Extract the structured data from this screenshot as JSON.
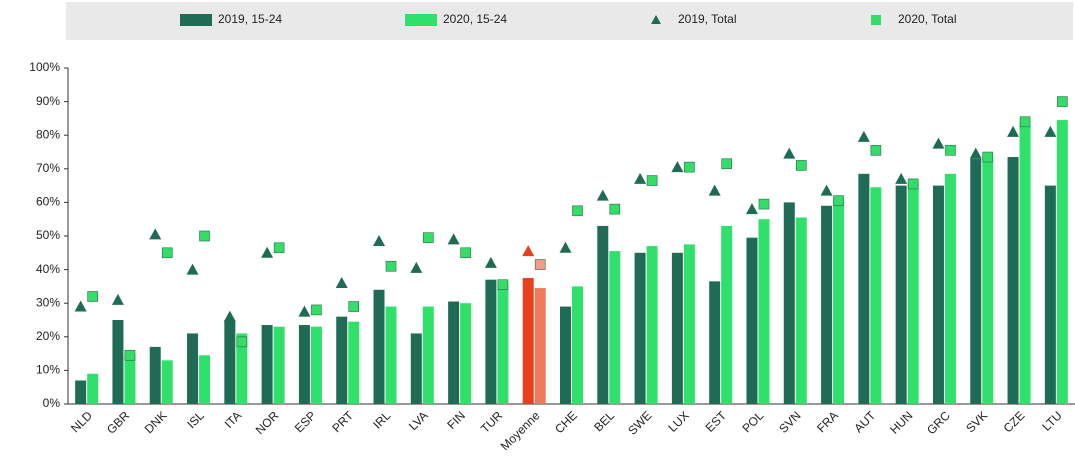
{
  "chart_data": {
    "type": "bar",
    "categories": [
      "NLD",
      "GBR",
      "DNK",
      "ISL",
      "ITA",
      "NOR",
      "ESP",
      "PRT",
      "IRL",
      "LVA",
      "FIN",
      "TUR",
      "Moyenne",
      "CHE",
      "BEL",
      "SWE",
      "LUX",
      "EST",
      "POL",
      "SVN",
      "FRA",
      "AUT",
      "HUN",
      "GRC",
      "SVK",
      "CZE",
      "LTU"
    ],
    "highlight_index": 12,
    "series": [
      {
        "name": "2019, 15-24",
        "mark": "bar",
        "color": "#1f6b55",
        "highlight_color": "#e8401c",
        "values": [
          7,
          25,
          17,
          21,
          25,
          23.5,
          23.5,
          26,
          34,
          21,
          30.5,
          37,
          37.5,
          29,
          53,
          45,
          45,
          36.5,
          49.5,
          60,
          59,
          68.5,
          65,
          65,
          73,
          73.5,
          65
        ]
      },
      {
        "name": "2020, 15-24",
        "mark": "bar",
        "color": "#2fe06a",
        "highlight_color": "#f07a5a",
        "values": [
          9,
          15,
          13,
          14.5,
          21,
          23,
          23,
          24.5,
          29,
          29,
          30,
          36,
          34.5,
          35,
          45.5,
          47,
          47.5,
          53,
          55,
          55.5,
          61,
          64.5,
          66,
          68.5,
          74,
          84,
          84.5
        ]
      },
      {
        "name": "2019, Total",
        "mark": "triangle",
        "color": "#1f6b55",
        "highlight_color": "#e8401c",
        "values": [
          29,
          31,
          50.5,
          40,
          26,
          45,
          27.5,
          36,
          48.5,
          40.5,
          49,
          42,
          45.5,
          46.5,
          62,
          67,
          70.5,
          63.5,
          58,
          74.5,
          63.5,
          79.5,
          67,
          77.5,
          74.5,
          81,
          81
        ]
      },
      {
        "name": "2020, Total",
        "mark": "square",
        "color": "#33dd66",
        "highlight_color": "#f59a85",
        "values": [
          32,
          14.5,
          45,
          50,
          18.5,
          46.5,
          28,
          29,
          41,
          49.5,
          45,
          35.5,
          41.5,
          57.5,
          58,
          66.5,
          70.5,
          71.5,
          59.5,
          71,
          60.5,
          75.5,
          65.5,
          75.5,
          73.5,
          84,
          90
        ]
      }
    ],
    "ylim": [
      0,
      100
    ],
    "yticks": [
      {
        "value": 0,
        "label": "0%"
      },
      {
        "value": 10,
        "label": "10%"
      },
      {
        "value": 20,
        "label": "20%"
      },
      {
        "value": 30,
        "label": "30%"
      },
      {
        "value": 40,
        "label": "40%"
      },
      {
        "value": 50,
        "label": "50%"
      },
      {
        "value": 60,
        "label": "60%"
      },
      {
        "value": 70,
        "label": "70%"
      },
      {
        "value": 80,
        "label": "80%"
      },
      {
        "value": 90,
        "label": "90%"
      },
      {
        "value": 100,
        "label": "100%"
      }
    ]
  }
}
